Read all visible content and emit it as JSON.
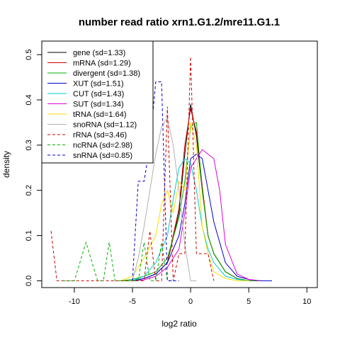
{
  "chart_data": {
    "type": "line",
    "title": "number read ratio xrn1.G1.2/mre11.G1.1",
    "xlabel": "log2 ratio",
    "ylabel": "density",
    "xlim": [
      -12.8,
      10.9
    ],
    "ylim": [
      -0.015,
      0.53
    ],
    "xticks": [
      -10,
      -5,
      0,
      5,
      10
    ],
    "xtick_labels": [
      "-10",
      "-5",
      "0",
      "5",
      "10"
    ],
    "yticks": [
      0.0,
      0.1,
      0.2,
      0.3,
      0.4,
      0.5
    ],
    "ytick_labels": [
      "0.0",
      "0.1",
      "0.2",
      "0.3",
      "0.4",
      "0.5"
    ],
    "grid": false,
    "legend_position": "top-left",
    "series": [
      {
        "name": "gene (sd=1.33)",
        "color": "#000000",
        "dash": false,
        "x": [
          -5,
          -4,
          -3,
          -2,
          -1,
          -0.5,
          0,
          0.5,
          1,
          1.5,
          2,
          3,
          4,
          5,
          6
        ],
        "y": [
          0.0,
          0.005,
          0.015,
          0.04,
          0.15,
          0.28,
          0.39,
          0.32,
          0.2,
          0.1,
          0.06,
          0.02,
          0.005,
          0.0,
          0.0
        ]
      },
      {
        "name": "mRNA (sd=1.29)",
        "color": "#cc0000",
        "dash": false,
        "x": [
          -5,
          -4,
          -3,
          -2,
          -1,
          -0.5,
          0,
          0.5,
          1,
          1.5,
          2,
          3,
          4,
          5
        ],
        "y": [
          0.0,
          0.005,
          0.015,
          0.04,
          0.16,
          0.3,
          0.38,
          0.33,
          0.21,
          0.1,
          0.06,
          0.02,
          0.005,
          0.0
        ]
      },
      {
        "name": "divergent (sd=1.38)",
        "color": "#00b000",
        "dash": false,
        "x": [
          -6,
          -5,
          -4,
          -3,
          -2,
          -1,
          -0.5,
          0,
          0.5,
          1,
          1.5,
          2,
          3,
          4,
          5,
          6
        ],
        "y": [
          0.0,
          0.003,
          0.01,
          0.02,
          0.05,
          0.14,
          0.22,
          0.34,
          0.35,
          0.2,
          0.1,
          0.06,
          0.02,
          0.005,
          0.0,
          0.0
        ]
      },
      {
        "name": "XUT (sd=1.51)",
        "color": "#0000cc",
        "dash": false,
        "x": [
          -5,
          -4,
          -3,
          -2,
          -1,
          -0.5,
          0,
          0.5,
          1,
          1.5,
          2,
          3,
          4,
          5,
          6,
          7
        ],
        "y": [
          0.0,
          0.005,
          0.015,
          0.04,
          0.1,
          0.17,
          0.27,
          0.28,
          0.27,
          0.2,
          0.13,
          0.04,
          0.01,
          0.003,
          0.0,
          0.0
        ]
      },
      {
        "name": "CUT (sd=1.43)",
        "color": "#00cccc",
        "dash": false,
        "x": [
          -5,
          -4,
          -3,
          -2,
          -1.5,
          -1,
          -0.5,
          0,
          0.5,
          1,
          1.5,
          2,
          3,
          4,
          5
        ],
        "y": [
          0.0,
          0.01,
          0.04,
          0.1,
          0.18,
          0.25,
          0.27,
          0.26,
          0.2,
          0.12,
          0.07,
          0.04,
          0.01,
          0.003,
          0.0
        ]
      },
      {
        "name": "SUT (sd=1.34)",
        "color": "#dd00dd",
        "dash": false,
        "x": [
          -5,
          -4,
          -3,
          -2,
          -1,
          -0.5,
          0,
          0.5,
          1,
          1.5,
          2,
          2.5,
          3,
          4,
          5,
          6
        ],
        "y": [
          0.0,
          0.002,
          0.01,
          0.03,
          0.07,
          0.15,
          0.25,
          0.27,
          0.29,
          0.28,
          0.27,
          0.2,
          0.08,
          0.015,
          0.003,
          0.0
        ]
      },
      {
        "name": "tRNA (sd=1.64)",
        "color": "#ffdd00",
        "dash": false,
        "x": [
          -6,
          -5,
          -4,
          -3,
          -2.5,
          -2,
          -1.5,
          -1,
          -0.5,
          0,
          0.5,
          1,
          1.5,
          2,
          3,
          4,
          5
        ],
        "y": [
          0.0,
          0.01,
          0.05,
          0.1,
          0.17,
          0.2,
          0.15,
          0.22,
          0.2,
          0.35,
          0.3,
          0.12,
          0.06,
          0.02,
          0.005,
          0.0,
          0.0
        ]
      },
      {
        "name": "snoRNA (sd=1.12)",
        "color": "#b0b0b0",
        "dash": false,
        "x": [
          -5,
          -4.5,
          -4,
          -3.5,
          -3,
          -2.5,
          -2,
          -1.5,
          -1,
          -0.5,
          0,
          0.5
        ],
        "y": [
          0.0,
          0.05,
          0.12,
          0.2,
          0.28,
          0.34,
          0.36,
          0.3,
          0.2,
          0.08,
          0.0,
          0.0
        ]
      },
      {
        "name": "rRNA (sd=3.46)",
        "color": "#cc0000",
        "dash": true,
        "x": [
          -12,
          -11.5,
          -4,
          -3.5,
          -3,
          -2.5,
          -2,
          -1.5,
          -1,
          -0.5,
          0,
          0.5,
          1,
          1.5,
          2
        ],
        "y": [
          0.11,
          0.0,
          0.0,
          0.11,
          0.0,
          0.0,
          0.385,
          0.0,
          0.06,
          0.06,
          0.495,
          0.06,
          0.06,
          0.06,
          0.0
        ]
      },
      {
        "name": "ncRNA (sd=2.98)",
        "color": "#00b000",
        "dash": true,
        "x": [
          -11,
          -10,
          -9,
          -8,
          -7.5,
          -7,
          -6.5,
          -6,
          -5.5,
          -5,
          -4.5,
          -4,
          -3.5,
          -3,
          -2.5,
          -2,
          -1.5
        ],
        "y": [
          0.0,
          0.0,
          0.085,
          0.0,
          0.0,
          0.085,
          0.0,
          0.0,
          0.0,
          0.0,
          0.0,
          0.085,
          0.0,
          0.0,
          0.085,
          0.0,
          0.0
        ]
      },
      {
        "name": "snRNA (sd=0.85)",
        "color": "#0000cc",
        "dash": true,
        "x": [
          -5,
          -4.5,
          -4,
          -3.5,
          -3,
          -2.5,
          -2,
          -1.5,
          -1
        ],
        "y": [
          0.0,
          0.22,
          0.22,
          0.3,
          0.44,
          0.44,
          0.0,
          0.0,
          0.0
        ]
      }
    ]
  }
}
